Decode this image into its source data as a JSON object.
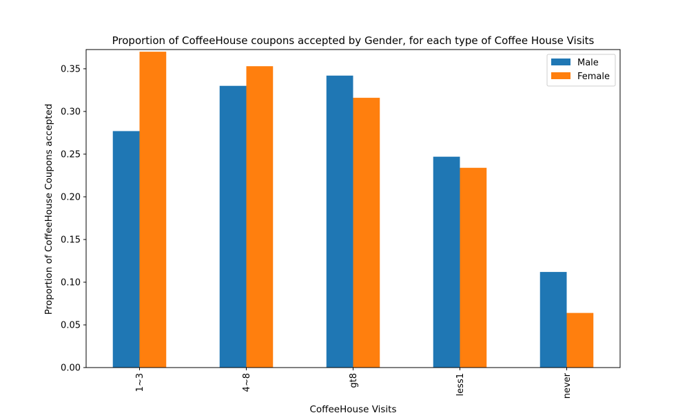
{
  "chart_data": {
    "type": "bar",
    "title": "Proportion of CoffeeHouse coupons accepted by Gender, for each type of Coffee House Visits",
    "xlabel": "CoffeeHouse Visits",
    "ylabel": "Proportion of CoffeeHouse Coupons accepted",
    "categories": [
      "1~3",
      "4~8",
      "gt8",
      "less1",
      "never"
    ],
    "series": [
      {
        "name": "Male",
        "color": "#1f77b4",
        "values": [
          0.277,
          0.33,
          0.342,
          0.247,
          0.112
        ]
      },
      {
        "name": "Female",
        "color": "#ff7f0e",
        "values": [
          0.37,
          0.353,
          0.316,
          0.234,
          0.064
        ]
      }
    ],
    "ylim": [
      0,
      0.3725
    ],
    "yticks": [
      0.0,
      0.05,
      0.1,
      0.15,
      0.2,
      0.25,
      0.3,
      0.35
    ],
    "ytick_labels": [
      "0.00",
      "0.05",
      "0.10",
      "0.15",
      "0.20",
      "0.25",
      "0.30",
      "0.35"
    ],
    "legend_position": "top-right",
    "grid": false
  }
}
